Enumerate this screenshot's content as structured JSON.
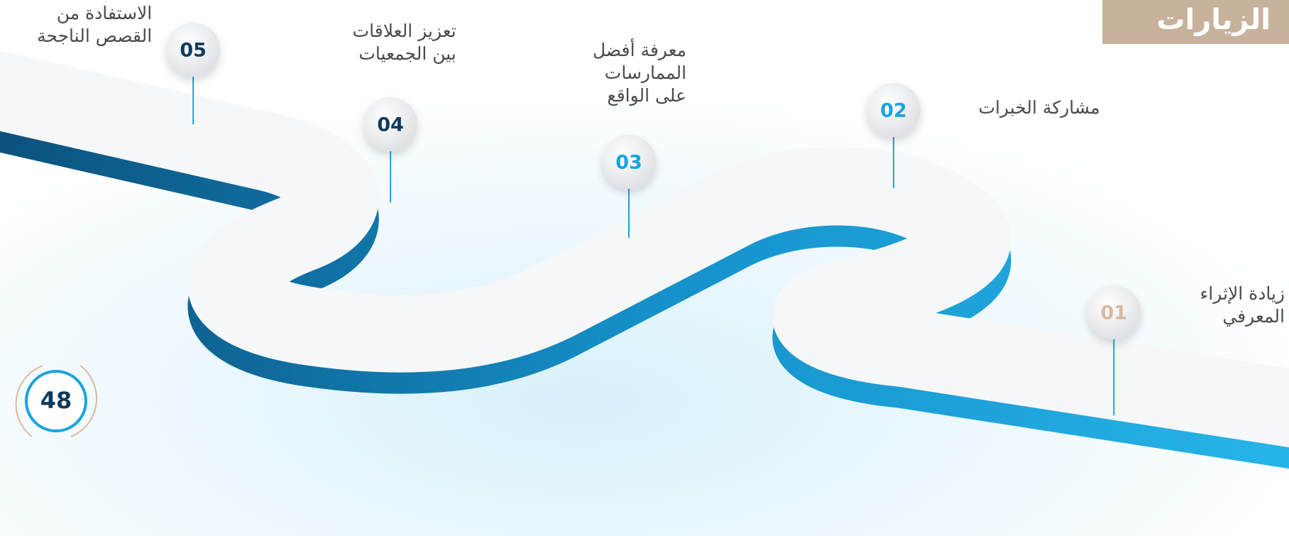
{
  "header": {
    "title": "الزيارات"
  },
  "steps": [
    {
      "number": "01",
      "label_lines": [
        "زيادة الإثراء",
        "المعرفي"
      ]
    },
    {
      "number": "02",
      "label_lines": [
        "مشاركة الخبرات"
      ]
    },
    {
      "number": "03",
      "label_lines": [
        "معرفة أفضل",
        "الممارسات",
        "على الواقع"
      ]
    },
    {
      "number": "04",
      "label_lines": [
        "تعزيز العلاقات",
        "بين الجمعيات"
      ]
    },
    {
      "number": "05",
      "label_lines": [
        "الاستفادة من",
        "القصص الناجحة"
      ]
    }
  ],
  "page_number": "48"
}
